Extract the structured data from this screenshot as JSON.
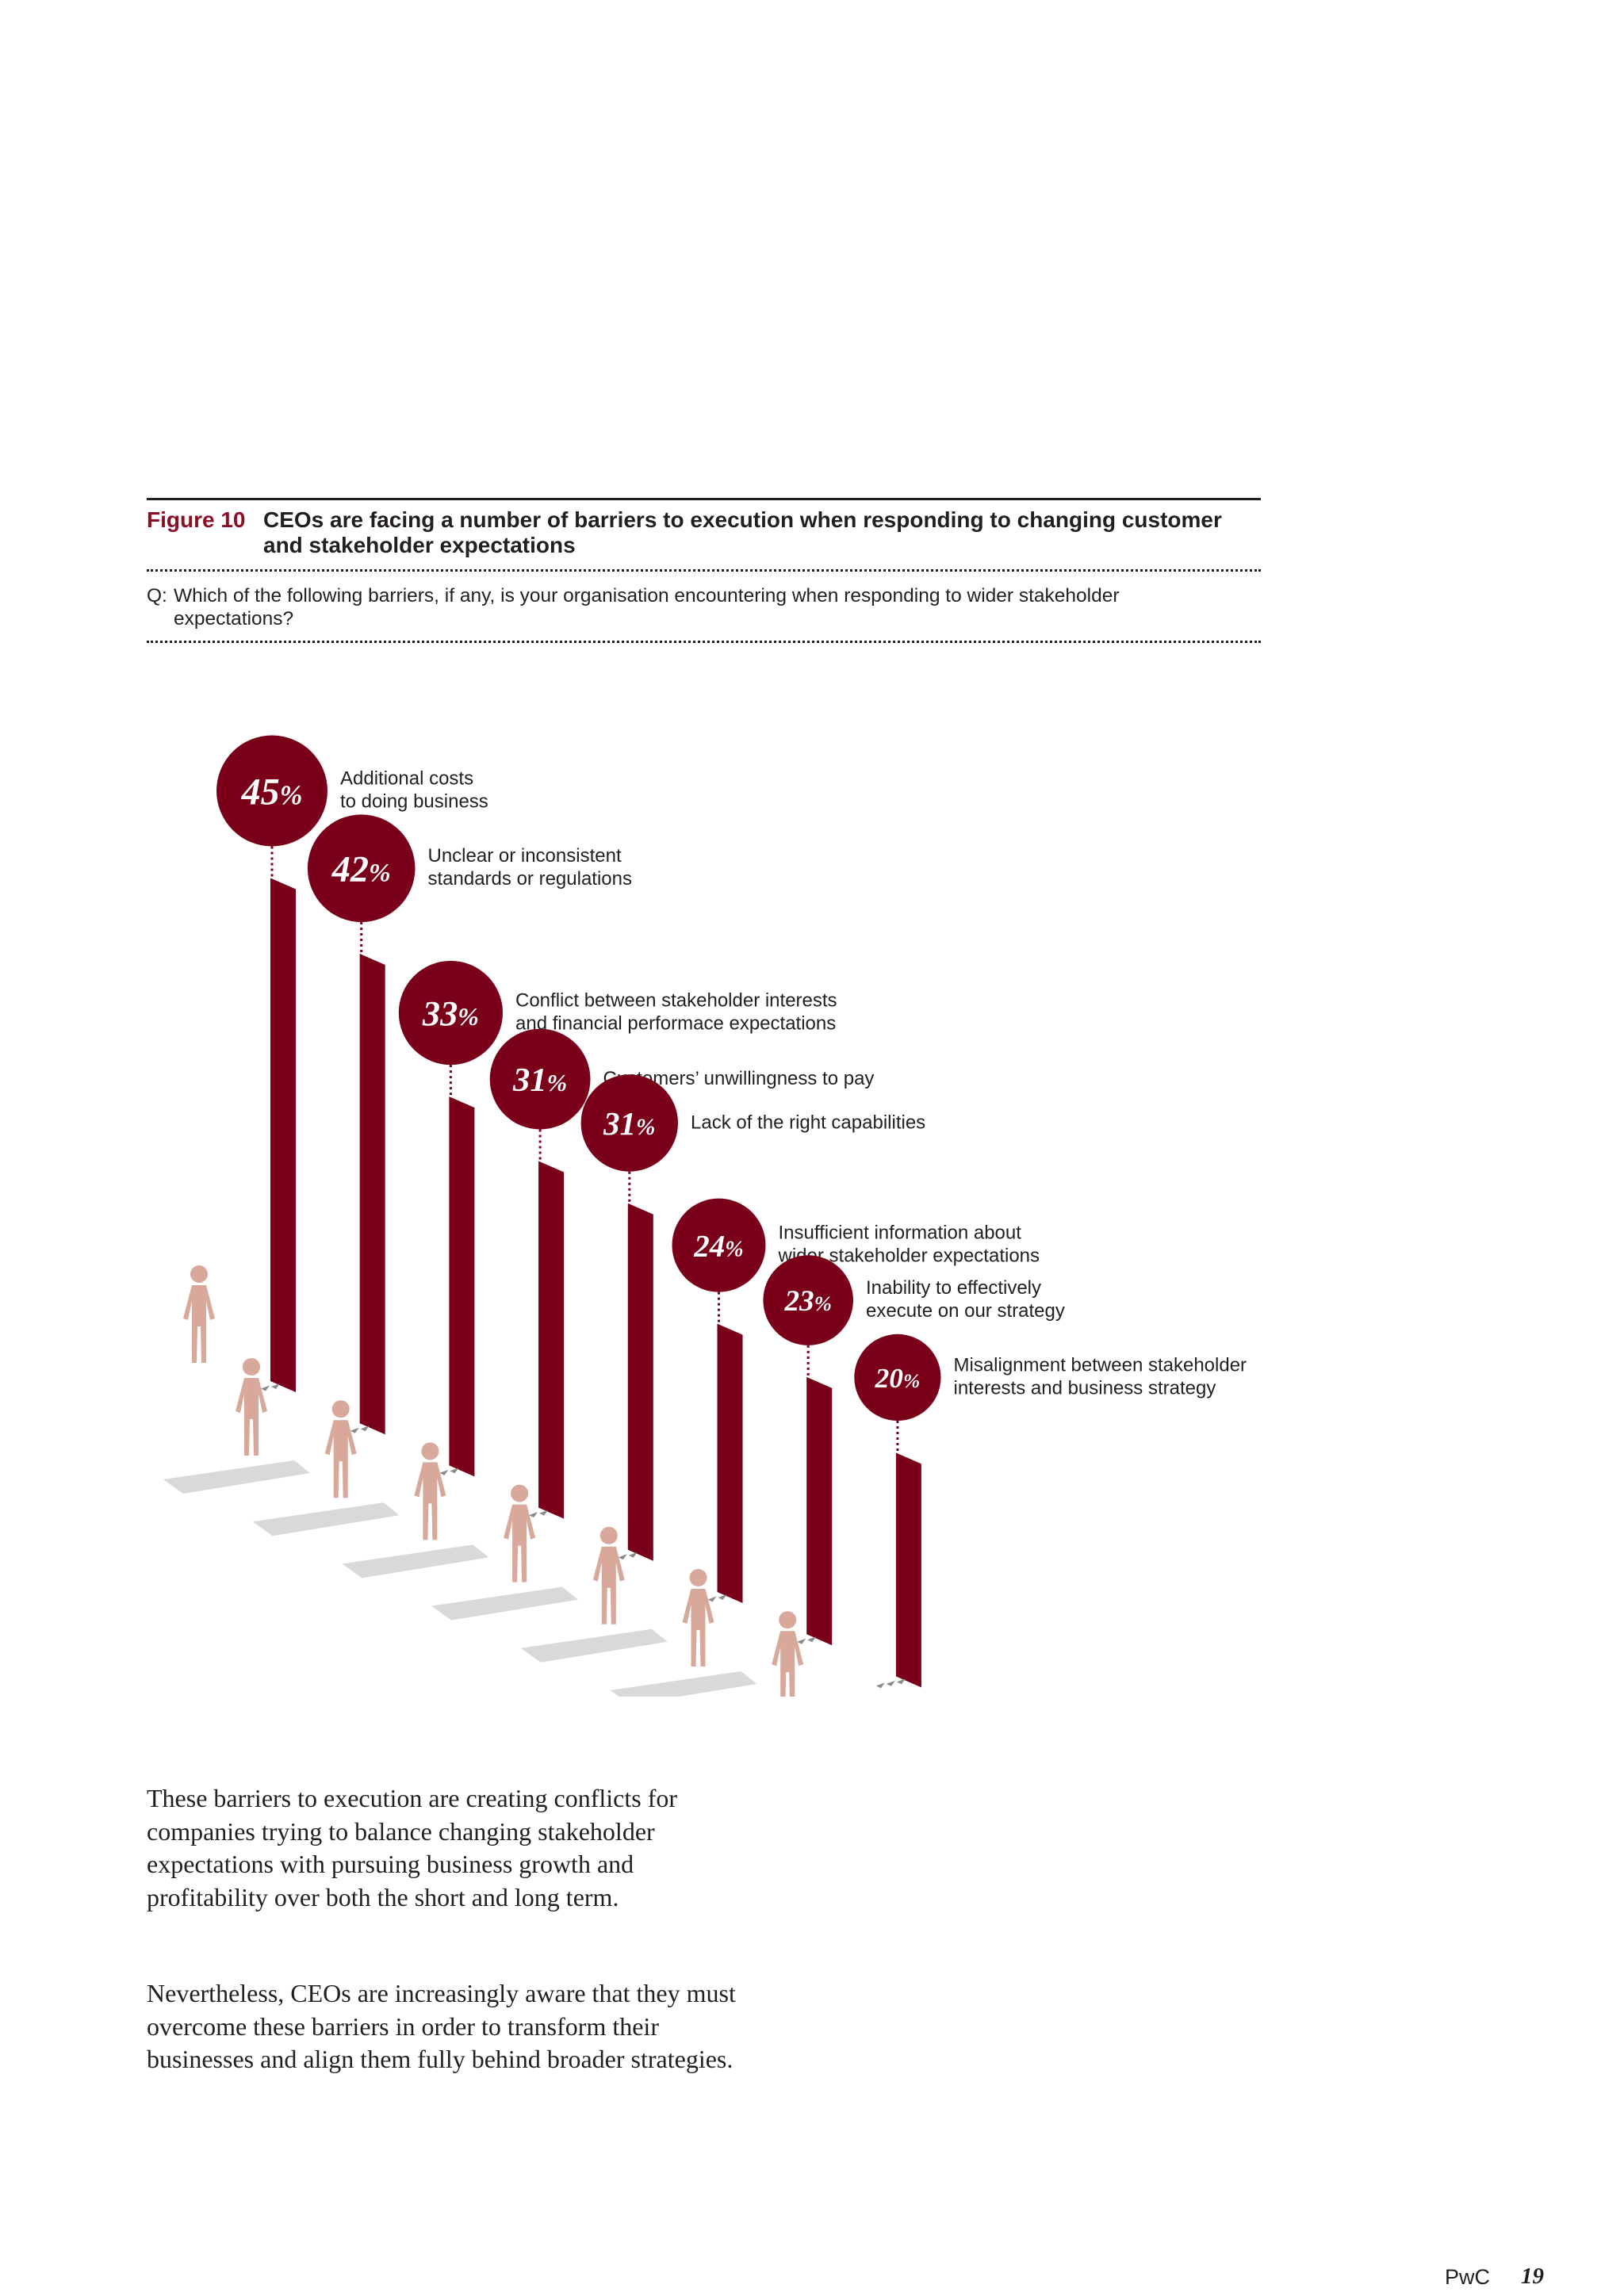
{
  "figure": {
    "label": "Figure 10",
    "title": "CEOs are facing a number of barriers to execution when responding to changing customer and stakeholder expectations",
    "question_prefix": "Q:",
    "question": "Which of the following barriers, if any, is your organisation encountering when responding to wider stakeholder expectations?"
  },
  "chart_data": {
    "type": "bar",
    "unit": "%",
    "categories": [
      "Additional costs to doing business",
      "Unclear or inconsistent standards or regulations",
      "Conflict between stakeholder interests and financial performace expectations",
      "Customers’ unwillingness to pay",
      "Lack of the right capabilities",
      "Insufficient information about wider stakeholder expectations",
      "Inability to effectively execute on our strategy",
      "Misalignment between stakeholder interests and business strategy"
    ],
    "label_lines": [
      [
        "Additional costs",
        "to doing business"
      ],
      [
        "Unclear or inconsistent",
        "standards or regulations"
      ],
      [
        "Conflict between stakeholder interests",
        "and financial performace expectations"
      ],
      [
        "Customers’ unwillingness to pay"
      ],
      [
        "Lack of the right capabilities"
      ],
      [
        "Insufficient information about",
        "wider stakeholder expectations"
      ],
      [
        "Inability to effectively",
        "execute on our strategy"
      ],
      [
        "Misalignment between stakeholder",
        "interests and business strategy"
      ]
    ],
    "values": [
      45,
      42,
      33,
      31,
      31,
      24,
      23,
      20
    ],
    "colors": {
      "bar": "#7a0019",
      "bubble": "#7a0019",
      "person": "#d8a89a",
      "floor": "#d9d9d9"
    }
  },
  "body": {
    "paragraph_1": "These barriers to execution are creating conflicts for companies trying to balance changing stakeholder expectations with pursuing business growth and profitability over both the short and long term.",
    "paragraph_2": "Nevertheless, CEOs are increasingly aware that they must overcome these barriers in order to transform their businesses and align them fully behind broader strategies."
  },
  "footer": {
    "brand": "PwC",
    "page_number": "19"
  }
}
